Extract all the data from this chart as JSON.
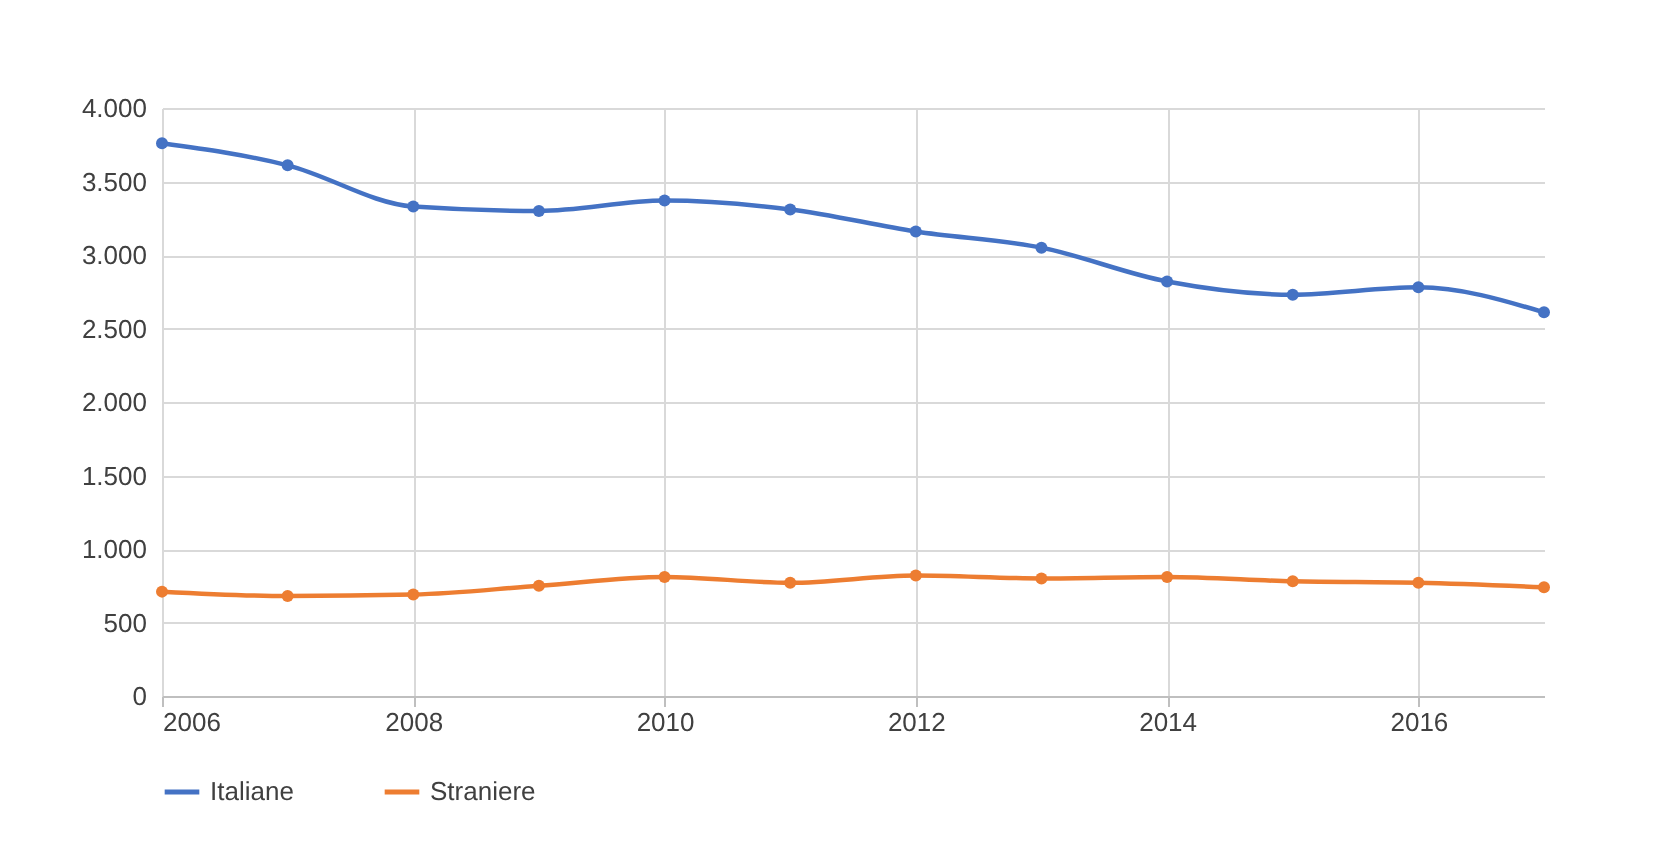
{
  "chart_data": {
    "type": "line",
    "x": [
      2006,
      2007,
      2008,
      2009,
      2010,
      2011,
      2012,
      2013,
      2014,
      2015,
      2016,
      2017
    ],
    "series": [
      {
        "name": "Italiane",
        "color": "#4472c4",
        "values": [
          3760,
          3610,
          3330,
          3300,
          3370,
          3310,
          3160,
          3050,
          2820,
          2730,
          2780,
          2610
        ]
      },
      {
        "name": "Straniere",
        "color": "#ed7d31",
        "values": [
          710,
          680,
          690,
          750,
          810,
          770,
          820,
          800,
          810,
          780,
          770,
          740
        ]
      }
    ],
    "xlim": [
      2006,
      2017
    ],
    "xticks": [
      2006,
      2008,
      2010,
      2012,
      2014,
      2016
    ],
    "ylim": [
      0,
      4000
    ],
    "yticks": [
      0,
      {
        "value": 500,
        "label": "500"
      },
      {
        "value": 1000,
        "label": "1.000"
      },
      {
        "value": 1500,
        "label": "1.500"
      },
      {
        "value": 2000,
        "label": "2.000"
      },
      {
        "value": 2500,
        "label": "2.500"
      },
      {
        "value": 3000,
        "label": "3.000"
      },
      {
        "value": 3500,
        "label": "3.500"
      },
      {
        "value": 4000,
        "label": "4.000"
      }
    ],
    "grid": true,
    "legend": "bottom",
    "marker": "circle",
    "line_style": "solid"
  }
}
